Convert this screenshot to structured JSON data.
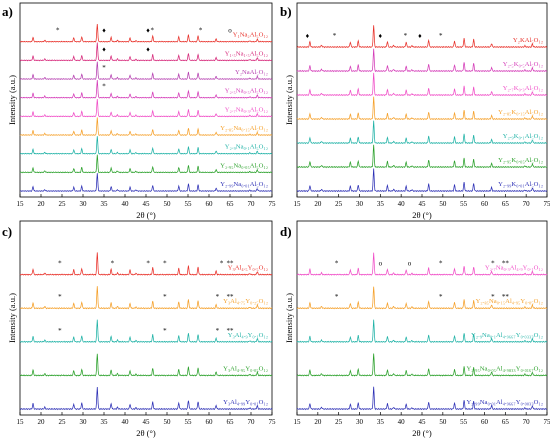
{
  "chart_data": [
    {
      "panel": "a)",
      "type": "line",
      "xlabel": "2θ (°)",
      "ylabel": "Intensity (a.u.)",
      "xlim": [
        15,
        75
      ],
      "xticks": [
        "15",
        "20",
        "25",
        "30",
        "35",
        "40",
        "45",
        "50",
        "55",
        "60",
        "65",
        "70",
        "75"
      ],
      "series": [
        {
          "name": "Y₁Na₂Al₅O₁₂",
          "color": "#e8312a",
          "markers": [
            {
              "x": 24,
              "s": "*"
            },
            {
              "x": 35,
              "s": "♦"
            },
            {
              "x": 45.5,
              "s": "♦"
            },
            {
              "x": 46.5,
              "s": "*"
            },
            {
              "x": 58,
              "s": "*"
            },
            {
              "x": 65,
              "s": "o"
            }
          ]
        },
        {
          "name": "Y₁.₅Na₁.₅Al₅O₁₂",
          "color": "#d6287a",
          "markers": [
            {
              "x": 35,
              "s": "♦"
            },
            {
              "x": 45.5,
              "s": "♦"
            }
          ]
        },
        {
          "name": "Y₂NaAl₅O₁₂",
          "color": "#b53fb0",
          "markers": [
            {
              "x": 35,
              "s": "*"
            }
          ]
        },
        {
          "name": "Y₂.₅Na₀.₅Al₅O₁₂",
          "color": "#d43cb8",
          "markers": [
            {
              "x": 35,
              "s": "*"
            }
          ]
        },
        {
          "name": "Y₂.₇Na₀.₃Al₅O₁₂",
          "color": "#f04ec7",
          "markers": []
        },
        {
          "name": "Y₂.₈₅Na₀.₁₅Al₅O₁₂",
          "color": "#f5a02a",
          "markers": []
        },
        {
          "name": "Y₂.₉Na₀.₁Al₅O₁₂",
          "color": "#1fb2a6",
          "markers": []
        },
        {
          "name": "Y₂.₉₅Na₀.₀₅Al₅O₁₂",
          "color": "#2aa02a",
          "markers": []
        },
        {
          "name": "Y₂.₉₉Na₀.₀₁Al₅O₁₂",
          "color": "#2c2fb5",
          "markers": []
        }
      ]
    },
    {
      "panel": "b)",
      "type": "line",
      "xlabel": "2θ (°)",
      "ylabel": "Intensity (a.u.)",
      "xlim": [
        15,
        75
      ],
      "xticks": [
        "15",
        "20",
        "25",
        "30",
        "35",
        "40",
        "45",
        "50",
        "55",
        "60",
        "65",
        "70",
        "75"
      ],
      "series": [
        {
          "name": "Y₂KAl₅O₁₂",
          "color": "#e8312a",
          "markers": [
            {
              "x": 17.5,
              "s": "♦"
            },
            {
              "x": 24,
              "s": "*"
            },
            {
              "x": 35,
              "s": "♦"
            },
            {
              "x": 41,
              "s": "*"
            },
            {
              "x": 44.5,
              "s": "♦"
            },
            {
              "x": 49.5,
              "s": "*"
            }
          ]
        },
        {
          "name": "Y₂.₅K₀.₅Al₅O₁₂",
          "color": "#d43cb8",
          "markers": []
        },
        {
          "name": "Y₂.₇K₀.₃Al₅O₁₂",
          "color": "#f04ec7",
          "markers": []
        },
        {
          "name": "Y₂.₈₅K₀.₁₅Al₅O₁₂",
          "color": "#f5a02a",
          "markers": []
        },
        {
          "name": "Y₂.₉K₀.₁Al₅O₁₂",
          "color": "#1fb2a6",
          "markers": []
        },
        {
          "name": "Y₂.₉₅K₀.₀₅Al₅O₁₂",
          "color": "#2aa02a",
          "markers": []
        },
        {
          "name": "Y₂.₉₉K₀.₀₁Al₅O₁₂",
          "color": "#2c2fb5",
          "markers": []
        }
      ]
    },
    {
      "panel": "c)",
      "type": "line",
      "xlabel": "2θ (°)",
      "ylabel": "Intensity (a.u.)",
      "xlim": [
        15,
        75
      ],
      "xticks": [
        "15",
        "20",
        "25",
        "30",
        "35",
        "40",
        "45",
        "50",
        "55",
        "60",
        "65",
        "70",
        "75"
      ],
      "series": [
        {
          "name": "Y₃Al₄.₅Y₀.₅O₁₂",
          "color": "#e8312a",
          "markers": [
            {
              "x": 24.5,
              "s": "*"
            },
            {
              "x": 37,
              "s": "*"
            },
            {
              "x": 45.5,
              "s": "*"
            },
            {
              "x": 49.5,
              "s": "*"
            },
            {
              "x": 63,
              "s": "*"
            },
            {
              "x": 65,
              "s": "**"
            }
          ]
        },
        {
          "name": "Y₃Al₄.₇₅Y₀.₂₅O₁₂",
          "color": "#f5a02a",
          "markers": [
            {
              "x": 24.5,
              "s": "*"
            },
            {
              "x": 49.5,
              "s": "*"
            },
            {
              "x": 62,
              "s": "*"
            },
            {
              "x": 65,
              "s": "**"
            }
          ]
        },
        {
          "name": "Y₃Al₄.₉Y₀.₁O₁₂",
          "color": "#1fb2a6",
          "markers": [
            {
              "x": 24.5,
              "s": "*"
            },
            {
              "x": 49.5,
              "s": "*"
            },
            {
              "x": 62,
              "s": "*"
            },
            {
              "x": 65,
              "s": "**"
            }
          ]
        },
        {
          "name": "Y₃Al₄.₉₅Y₀.₀₅O₁₂",
          "color": "#2aa02a",
          "markers": []
        },
        {
          "name": "Y₃Al₄.₉₉Y₀.₀₁O₁₂",
          "color": "#2c2fb5",
          "markers": []
        }
      ]
    },
    {
      "panel": "d)",
      "type": "line",
      "xlabel": "2θ (°)",
      "ylabel": "Intensity (a.u.)",
      "xlim": [
        15,
        75
      ],
      "xticks": [
        "15",
        "20",
        "25",
        "30",
        "35",
        "40",
        "45",
        "50",
        "55",
        "60",
        "65",
        "70",
        "75"
      ],
      "series": [
        {
          "name": "Y₂.₇Na₀.₃Al₄.₉Y₀.₁O₁₂",
          "color": "#f04ec7",
          "markers": [
            {
              "x": 24.5,
              "s": "*"
            },
            {
              "x": 35,
              "s": "o"
            },
            {
              "x": 42,
              "s": "o"
            },
            {
              "x": 49.5,
              "s": "*"
            },
            {
              "x": 62,
              "s": "*"
            },
            {
              "x": 65,
              "s": "**"
            }
          ]
        },
        {
          "name": "Y₂.₈₅Na₀.₁₅Al₄.₉₅Y₀.₀₅O₁₂",
          "color": "#f5a02a",
          "markers": [
            {
              "x": 24.5,
              "s": "*"
            },
            {
              "x": 49.5,
              "s": "*"
            },
            {
              "x": 62,
              "s": "*"
            },
            {
              "x": 65,
              "s": "**"
            }
          ]
        },
        {
          "name": "Y₂.₉Na₀.₁Al₄.₉₆₆₇Y₀.₀₃₃₃O₁₂",
          "color": "#1fb2a6",
          "markers": []
        },
        {
          "name": "Y₂.₉₅Na₀.₀₅Al₄.₉₈₃₃Y₀.₀₁₆₇O₁₂",
          "color": "#2aa02a",
          "markers": []
        },
        {
          "name": "Y₂.₉₉Na₀.₀₁Al₄.₉₆₆₇Y₀.₀₀₃₃O₁₂",
          "color": "#2c2fb5",
          "markers": []
        }
      ]
    }
  ],
  "garnet_peaks_2theta": [
    {
      "x": 18.1,
      "i": 0.25
    },
    {
      "x": 20.9,
      "i": 0.08
    },
    {
      "x": 27.8,
      "i": 0.22
    },
    {
      "x": 29.7,
      "i": 0.28
    },
    {
      "x": 33.4,
      "i": 1.0
    },
    {
      "x": 36.7,
      "i": 0.25
    },
    {
      "x": 38.2,
      "i": 0.08
    },
    {
      "x": 41.2,
      "i": 0.22
    },
    {
      "x": 42.6,
      "i": 0.06
    },
    {
      "x": 46.6,
      "i": 0.32
    },
    {
      "x": 52.8,
      "i": 0.28
    },
    {
      "x": 55.1,
      "i": 0.4
    },
    {
      "x": 57.4,
      "i": 0.35
    },
    {
      "x": 61.7,
      "i": 0.16
    },
    {
      "x": 69.7,
      "i": 0.05
    },
    {
      "x": 71.5,
      "i": 0.14
    }
  ]
}
